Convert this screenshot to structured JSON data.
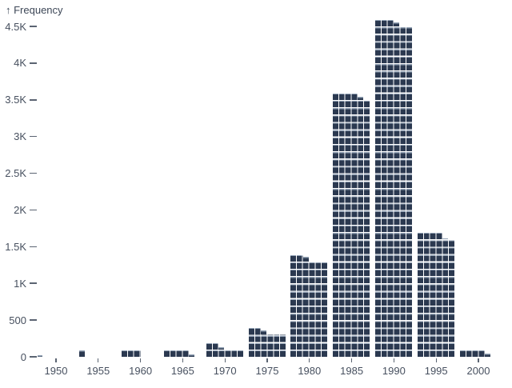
{
  "title": "↑ Frequency",
  "colors": {
    "square": "#2b3950",
    "square_bevel": "#93a2b5",
    "axis_text": "#47505f",
    "background": "#ffffff"
  },
  "y_axis": {
    "label": "Frequency",
    "tick_labels": [
      "4.5K",
      "4K",
      "3.5K",
      "3K",
      "2.5K",
      "2K",
      "1.5K",
      "1K",
      "500",
      "0"
    ],
    "tick_values": [
      4500,
      4000,
      3500,
      3000,
      2500,
      2000,
      1500,
      1000,
      500,
      0
    ]
  },
  "x_axis": {
    "tick_labels": [
      "1950",
      "1955",
      "1960",
      "1965",
      "1970",
      "1975",
      "1980",
      "1985",
      "1990",
      "1995",
      "2000"
    ]
  },
  "chart_data": {
    "type": "bar",
    "variant": "waffle-histogram",
    "categories": [
      "1950",
      "1955",
      "1960",
      "1965",
      "1970",
      "1975",
      "1980",
      "1985",
      "1990",
      "1995",
      "2000"
    ],
    "values": [
      5,
      16,
      50,
      72,
      140,
      345,
      1345,
      3575,
      4560,
      1670,
      75
    ],
    "title": "",
    "xlabel": "",
    "ylabel": "Frequency",
    "ylim": [
      0,
      4600
    ],
    "bin_width_years": 5,
    "squares_per_row": 6,
    "row_value": 100,
    "unit_value": 16.667,
    "grid": false,
    "legend": false
  }
}
